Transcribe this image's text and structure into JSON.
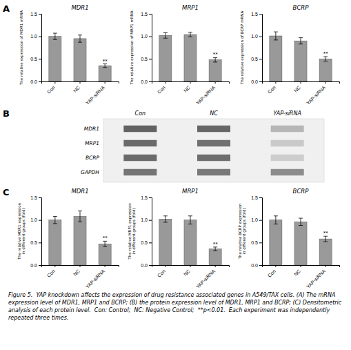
{
  "chart_data": [
    {
      "type": "bar",
      "title": "MDR1",
      "y_label": "The relative expression of MDR1 mRNA",
      "categories": [
        "Con",
        "NC",
        "YAP-siRNA"
      ],
      "values": [
        1.0,
        0.95,
        0.35
      ],
      "errors": [
        0.07,
        0.08,
        0.04
      ],
      "color": "#999999",
      "ylim": [
        0.0,
        1.5
      ],
      "yticks": [
        {
          "value": 0.0,
          "label": "0.0"
        },
        0.5,
        {
          "value": 1.0,
          "label": "1.0"
        },
        1.5
      ],
      "grid": false,
      "annotations": [
        {
          "text": "A"
        },
        {
          "text": "**",
          "x": "YAP-siRNA"
        }
      ]
    },
    {
      "type": "bar",
      "title": "MRP1",
      "y_label": "The relative expression of MRP1 mRNA",
      "categories": [
        "Con",
        "NC",
        "YAP-siRNA"
      ],
      "values": [
        1.02,
        1.04,
        0.48
      ],
      "errors": [
        0.06,
        0.05,
        0.05
      ],
      "color": "#999999",
      "ylim": [
        0.0,
        1.5
      ],
      "yticks": [
        {
          "value": 0.0,
          "label": "0.0"
        },
        0.5,
        {
          "value": 1.0,
          "label": "1.0"
        },
        1.5
      ],
      "grid": false,
      "annotations": [
        {
          "text": "**",
          "x": "YAP-siRNA"
        }
      ]
    },
    {
      "type": "bar",
      "title": "BCRP",
      "y_label": "The relative expression of BCRP mRNA",
      "categories": [
        "Con",
        "NC",
        "YAP-siRNA"
      ],
      "values": [
        1.01,
        0.9,
        0.5
      ],
      "errors": [
        0.09,
        0.07,
        0.05
      ],
      "color": "#999999",
      "ylim": [
        0.0,
        1.5
      ],
      "yticks": [
        {
          "value": 0.0,
          "label": "0.0"
        },
        0.5,
        {
          "value": 1.0,
          "label": "1.0"
        },
        1.5
      ],
      "grid": false,
      "annotations": [
        {
          "text": "**",
          "x": "YAP-siRNA"
        }
      ]
    },
    {
      "type": "heatmap",
      "x": [
        "Con",
        "NC",
        "YAP-siRNA"
      ],
      "y": [
        "MDR1",
        "MRP1",
        "BCRP",
        "GAPDH"
      ],
      "cells": [
        [
          0.82,
          0.8,
          0.38
        ],
        [
          0.78,
          0.74,
          0.28
        ],
        [
          0.78,
          0.76,
          0.26
        ],
        [
          0.72,
          0.7,
          0.6
        ]
      ],
      "annotations": [
        {
          "text": "B"
        }
      ]
    },
    {
      "type": "bar",
      "title": "MDR1",
      "y_label": "The relative MDR1 expression\nin different groups (fold)",
      "categories": [
        "Con",
        "NC",
        "YAP-siRNA"
      ],
      "values": [
        1.0,
        1.08,
        0.47
      ],
      "errors": [
        0.08,
        0.12,
        0.06
      ],
      "color": "#999999",
      "ylim": [
        0.0,
        1.5
      ],
      "yticks": [
        {
          "value": 0.0,
          "label": "0.0"
        },
        0.5,
        {
          "value": 1.0,
          "label": "1.0"
        },
        1.5
      ],
      "grid": false,
      "annotations": [
        {
          "text": "C"
        },
        {
          "text": "**",
          "x": "YAP-siRNA"
        }
      ]
    },
    {
      "type": "bar",
      "title": "MRP1",
      "y_label": "The relative MRP1 expression\nin different groups (fold)",
      "categories": [
        "Con",
        "NC",
        "YAP-siRNA"
      ],
      "values": [
        1.02,
        1.0,
        0.36
      ],
      "errors": [
        0.07,
        0.09,
        0.04
      ],
      "color": "#999999",
      "ylim": [
        0.0,
        1.5
      ],
      "yticks": [
        {
          "value": 0.0,
          "label": "0.0"
        },
        0.5,
        {
          "value": 1.0,
          "label": "1.0"
        },
        1.5
      ],
      "grid": false,
      "annotations": [
        {
          "text": "**",
          "x": "YAP-siRNA"
        }
      ]
    },
    {
      "type": "bar",
      "title": "BCRP",
      "y_label": "The relative BCRP expression\nin different groups (fold)",
      "categories": [
        "Con",
        "NC",
        "YAP-siRNA"
      ],
      "values": [
        1.0,
        0.96,
        0.58
      ],
      "errors": [
        0.09,
        0.08,
        0.06
      ],
      "color": "#999999",
      "ylim": [
        0.0,
        1.5
      ],
      "yticks": [
        {
          "value": 0.0,
          "label": "0.0"
        },
        0.5,
        {
          "value": 1.0,
          "label": "1.0"
        },
        1.5
      ],
      "grid": false,
      "annotations": [
        {
          "text": "**",
          "x": "YAP-siRNA"
        },
        {
          "text": "Figure 5.  YAP knockdown affects the expression of drug resistance associated genes in A549/TAX cells. (A) The mRNA expression level of MDR1, MRP1 and BCRP; (B) the protein expression level of MDR1, MRP1 and BCRP; (C) Densitometric analysis of each protein level.  Con: Control;  NC: Negative Control;  **p<0.01.  Each experiment was independently repeated three times."
        }
      ]
    }
  ]
}
